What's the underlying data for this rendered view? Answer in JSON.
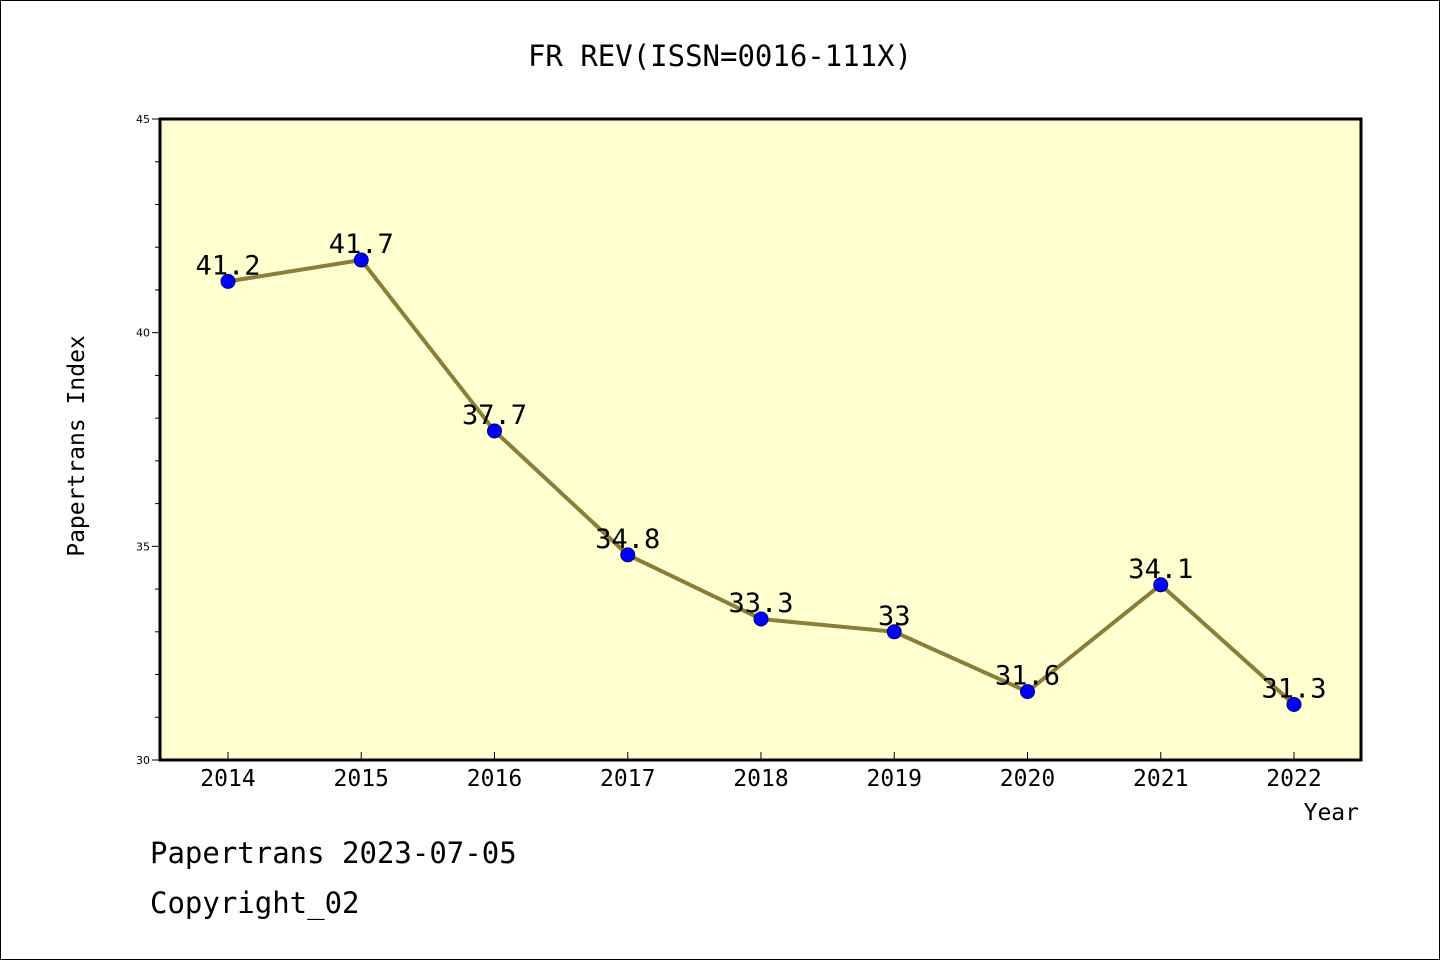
{
  "chart_data": {
    "type": "line",
    "title": "FR REV(ISSN=0016-111X)",
    "xlabel": "Year",
    "ylabel": "Papertrans Index",
    "categories": [
      "2014",
      "2015",
      "2016",
      "2017",
      "2018",
      "2019",
      "2020",
      "2021",
      "2022"
    ],
    "series": [
      {
        "values": [
          41.2,
          41.7,
          37.7,
          34.8,
          33.3,
          33,
          31.6,
          34.1,
          31.3
        ],
        "labels": [
          "41.2",
          "41.7",
          "37.7",
          "34.8",
          "33.3",
          "33",
          "31.6",
          "34.1",
          "31.3"
        ],
        "line_color": "#8b7d3a",
        "marker_color": "#0000ff"
      }
    ],
    "ylim": [
      30,
      45
    ],
    "yticks": [
      30,
      35,
      40,
      45
    ],
    "ytick_labels": [
      "30",
      "35",
      "40",
      "45"
    ],
    "plot_background": "#ffffd0",
    "grid": false,
    "legend": "none"
  },
  "footer": {
    "line1": "Papertrans 2023-07-05",
    "line2": "Copyright_02"
  }
}
